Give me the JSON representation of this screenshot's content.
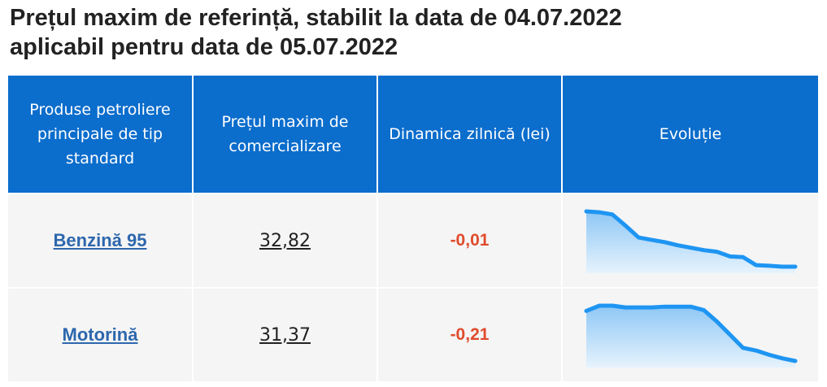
{
  "header": {
    "title_line1": "Prețul maxim de referință, stabilit la data de 04.07.2022",
    "title_line2": "aplicabil pentru data de 05.07.2022"
  },
  "table": {
    "columns": [
      "Produse petroliere principale de tip standard",
      "Prețul maxim de comercializare",
      "Dinamica zilnică (lei)",
      "Evoluție"
    ],
    "rows": [
      {
        "product": "Benzină 95",
        "price": "32,82",
        "change": "-0,01",
        "evolution": [
          36.0,
          35.95,
          35.82,
          35.18,
          34.5,
          34.36,
          34.23,
          34.05,
          33.91,
          33.77,
          33.68,
          33.41,
          33.37,
          32.91,
          32.87,
          32.82,
          32.82
        ]
      },
      {
        "product": "Motorină",
        "price": "31,37",
        "change": "-0,21",
        "evolution": [
          33.96,
          34.23,
          34.23,
          34.14,
          34.14,
          34.14,
          34.18,
          34.18,
          34.18,
          34.0,
          33.41,
          32.73,
          32.05,
          31.91,
          31.69,
          31.51,
          31.37
        ]
      }
    ]
  }
}
